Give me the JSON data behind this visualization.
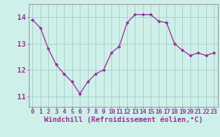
{
  "x": [
    0,
    1,
    2,
    3,
    4,
    5,
    6,
    7,
    8,
    9,
    10,
    11,
    12,
    13,
    14,
    15,
    16,
    17,
    18,
    19,
    20,
    21,
    22,
    23
  ],
  "y": [
    13.9,
    13.6,
    12.8,
    12.2,
    11.85,
    11.55,
    11.1,
    11.55,
    11.85,
    12.0,
    12.65,
    12.9,
    13.8,
    14.1,
    14.1,
    14.1,
    13.85,
    13.8,
    13.0,
    12.75,
    12.55,
    12.65,
    12.55,
    12.65
  ],
  "line_color": "#993399",
  "marker": "D",
  "marker_size": 2.2,
  "bg_color": "#cff0ea",
  "grid_color": "#a0ccc4",
  "xlabel": "Windchill (Refroidissement éolien,°C)",
  "xlabel_fontsize": 7.5,
  "ylabel_ticks": [
    11,
    12,
    13,
    14
  ],
  "xtick_labels": [
    "0",
    "1",
    "2",
    "3",
    "4",
    "5",
    "6",
    "7",
    "8",
    "9",
    "10",
    "11",
    "12",
    "13",
    "14",
    "15",
    "16",
    "17",
    "18",
    "19",
    "20",
    "21",
    "22",
    "23"
  ],
  "ylim": [
    10.6,
    14.5
  ],
  "xlim": [
    -0.5,
    23.5
  ],
  "tick_color": "#993399",
  "tick_fontsize": 6.5,
  "ytick_fontsize": 7.5,
  "axis_color": "#999999",
  "linewidth": 1.0
}
